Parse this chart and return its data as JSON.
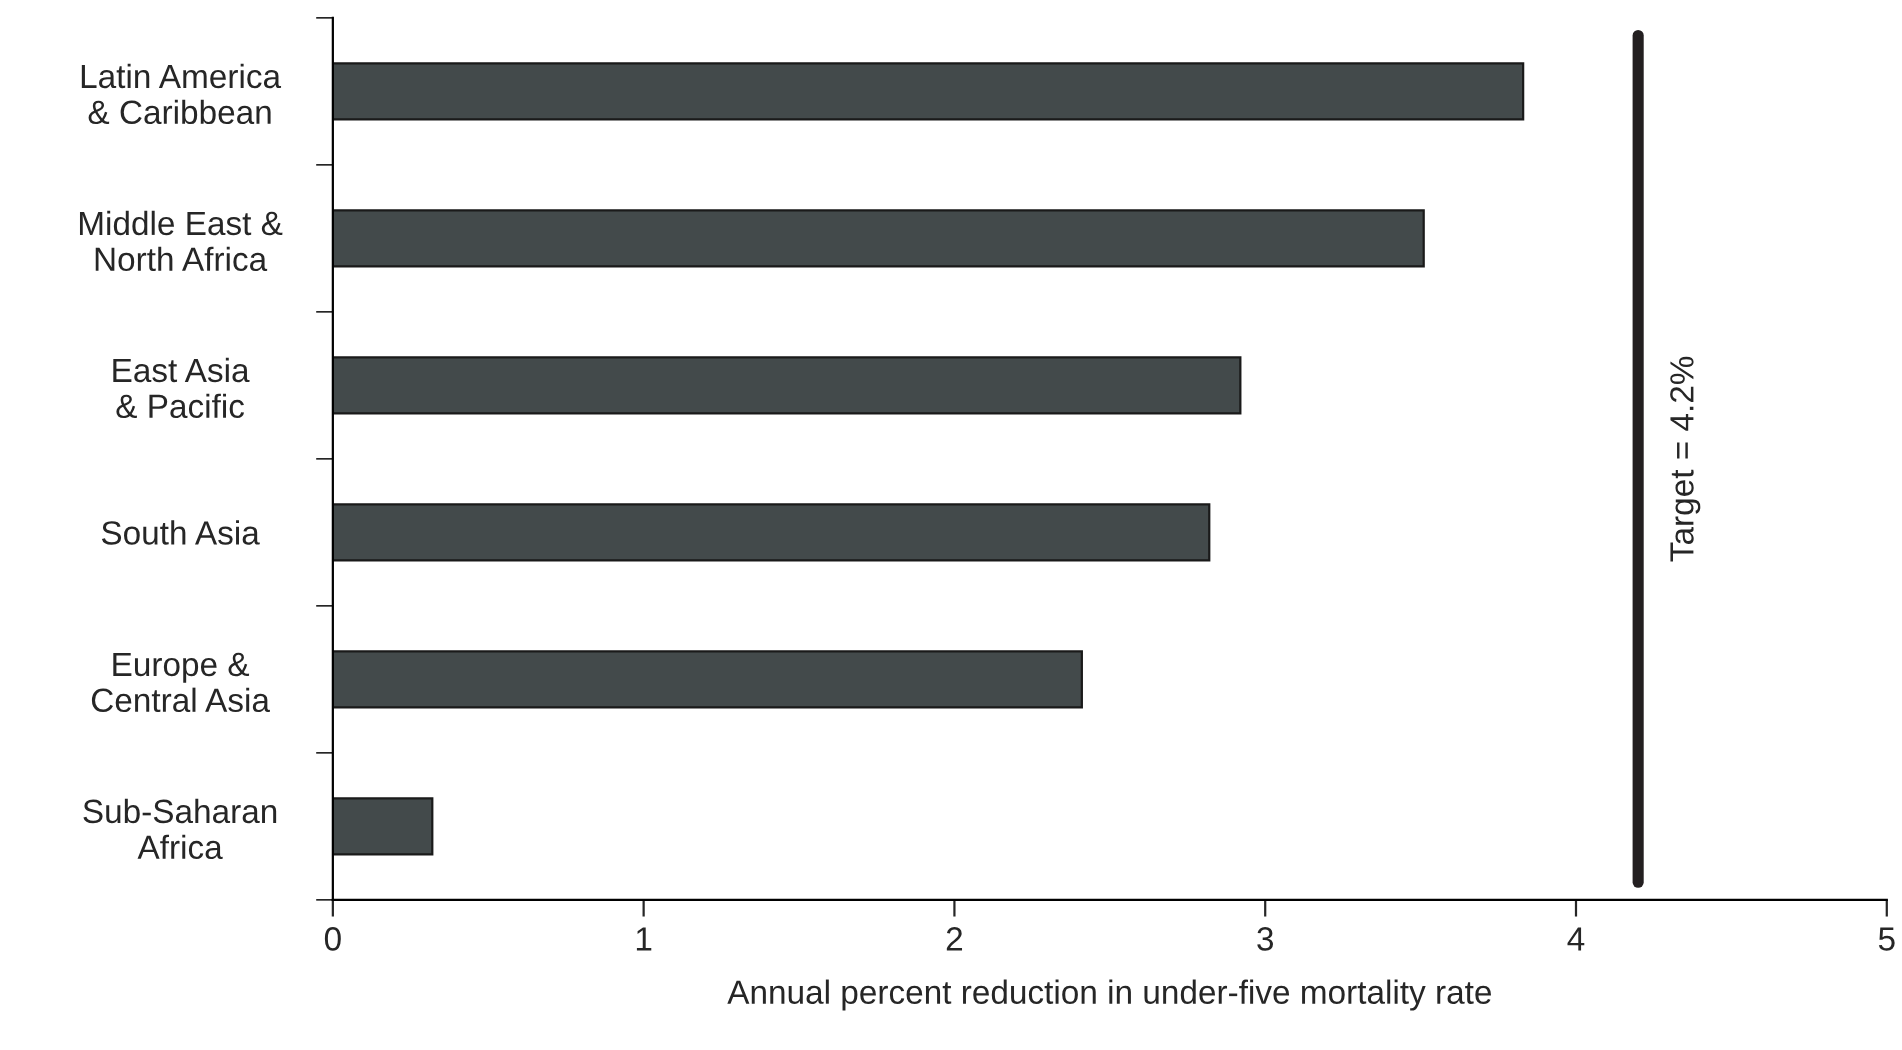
{
  "chart_data": {
    "type": "bar",
    "orientation": "horizontal",
    "categories": [
      "Latin America\n& Caribbean",
      "Middle East &\nNorth Africa",
      "East Asia\n& Pacific",
      "South Asia",
      "Europe &\nCentral Asia",
      "Sub-Saharan\nAfrica"
    ],
    "values": [
      3.83,
      3.51,
      2.92,
      2.82,
      2.41,
      0.32
    ],
    "color": "#434a4b",
    "xlabel": "Annual percent reduction in under-five mortality rate",
    "xlim": [
      0,
      5
    ],
    "xticks": [
      0,
      1,
      2,
      3,
      4,
      5
    ],
    "ref_lines": [
      {
        "axis": "x",
        "value": 4.2,
        "label": "Target = 4.2%",
        "color": "#231f20"
      }
    ],
    "grid": false,
    "legend": false
  }
}
